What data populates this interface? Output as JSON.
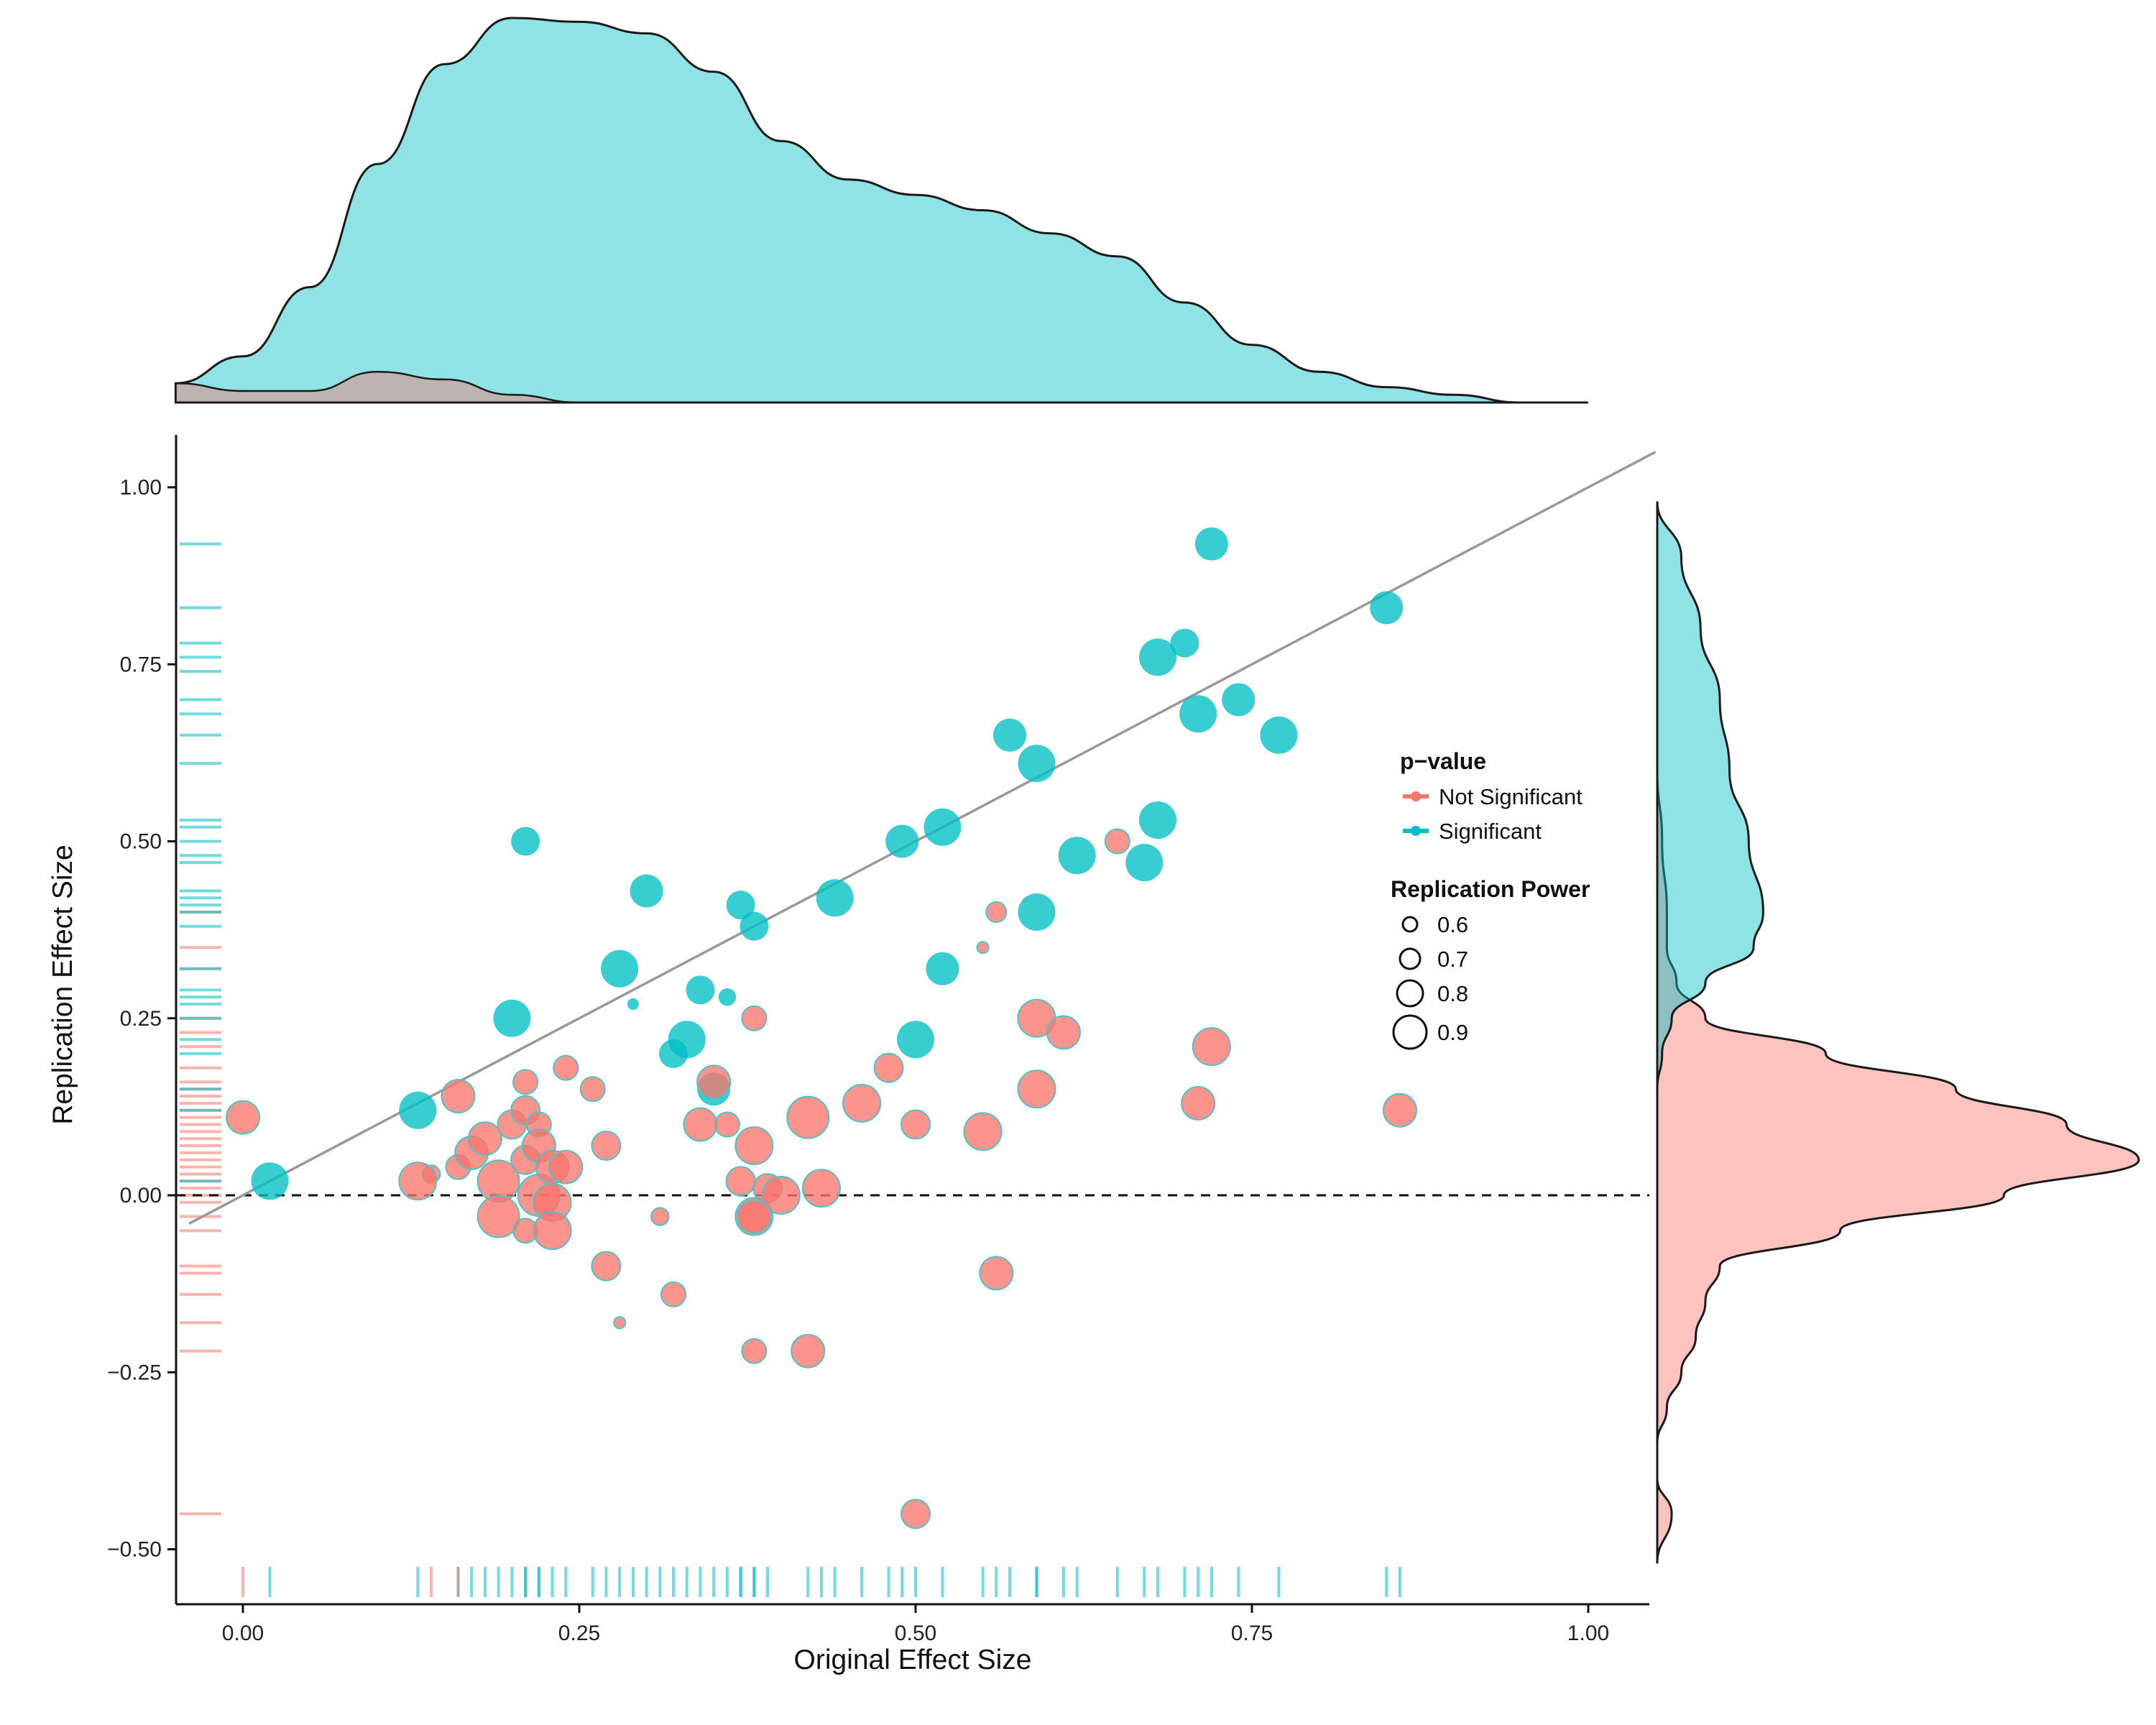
{
  "chart_data": {
    "type": "scatter",
    "title": "",
    "xlabel": "Original Effect Size",
    "ylabel": "Replication Effect Size",
    "xlim": [
      -0.05,
      1.05
    ],
    "ylim": [
      -0.57,
      1.07
    ],
    "xticks": [
      0.0,
      0.25,
      0.5,
      0.75,
      1.0
    ],
    "xtick_labels": [
      "0.00",
      "0.25",
      "0.50",
      "0.75",
      "1.00"
    ],
    "yticks": [
      -0.5,
      -0.25,
      0.0,
      0.25,
      0.5,
      0.75,
      1.0
    ],
    "ytick_labels": [
      "−0.50",
      "−0.25",
      "0.00",
      "0.25",
      "0.50",
      "0.75",
      "1.00"
    ],
    "reference_line": {
      "type": "diagonal",
      "slope": 1,
      "intercept": 0,
      "color": "#999999"
    },
    "zero_line": {
      "y": 0,
      "style": "dashed",
      "color": "#111111"
    },
    "colors": {
      "not_significant": "#F8766D",
      "significant": "#00BFC4"
    },
    "legend": {
      "color_title": "p−value",
      "color_entries": [
        "Not Significant",
        "Significant"
      ],
      "size_title": "Replication Power",
      "size_entries": [
        "0.6",
        "0.7",
        "0.8",
        "0.9"
      ],
      "size_values": [
        0.6,
        0.7,
        0.8,
        0.9
      ],
      "position": "right"
    },
    "series": [
      {
        "name": "Significant",
        "points": [
          [
            0.72,
            0.92,
            0.8
          ],
          [
            0.85,
            0.83,
            0.8
          ],
          [
            0.7,
            0.78,
            0.75
          ],
          [
            0.68,
            0.76,
            0.85
          ],
          [
            0.74,
            0.7,
            0.8
          ],
          [
            0.71,
            0.68,
            0.85
          ],
          [
            0.77,
            0.65,
            0.85
          ],
          [
            0.57,
            0.65,
            0.8
          ],
          [
            0.59,
            0.61,
            0.85
          ],
          [
            0.52,
            0.52,
            0.85
          ],
          [
            0.49,
            0.5,
            0.8
          ],
          [
            0.68,
            0.53,
            0.85
          ],
          [
            0.62,
            0.48,
            0.85
          ],
          [
            0.67,
            0.47,
            0.85
          ],
          [
            0.44,
            0.42,
            0.85
          ],
          [
            0.21,
            0.5,
            0.75
          ],
          [
            0.3,
            0.43,
            0.8
          ],
          [
            0.37,
            0.41,
            0.75
          ],
          [
            0.38,
            0.38,
            0.75
          ],
          [
            0.59,
            0.4,
            0.85
          ],
          [
            0.28,
            0.32,
            0.85
          ],
          [
            0.52,
            0.32,
            0.8
          ],
          [
            0.34,
            0.29,
            0.75
          ],
          [
            0.36,
            0.28,
            0.62
          ],
          [
            0.29,
            0.27,
            0.55
          ],
          [
            0.2,
            0.25,
            0.85
          ],
          [
            0.33,
            0.22,
            0.85
          ],
          [
            0.32,
            0.2,
            0.75
          ],
          [
            0.5,
            0.22,
            0.85
          ],
          [
            0.35,
            0.15,
            0.8
          ],
          [
            0.13,
            0.12,
            0.85
          ],
          [
            0.02,
            0.02,
            0.85
          ]
        ]
      },
      {
        "name": "Not Significant",
        "points": [
          [
            0.0,
            0.11,
            0.8
          ],
          [
            0.16,
            0.14,
            0.8
          ],
          [
            0.14,
            0.03,
            0.62
          ],
          [
            0.13,
            0.02,
            0.85
          ],
          [
            0.16,
            0.04,
            0.7
          ],
          [
            0.17,
            0.06,
            0.8
          ],
          [
            0.18,
            0.08,
            0.8
          ],
          [
            0.19,
            0.02,
            0.9
          ],
          [
            0.19,
            -0.03,
            0.9
          ],
          [
            0.2,
            0.1,
            0.75
          ],
          [
            0.21,
            0.16,
            0.7
          ],
          [
            0.21,
            0.12,
            0.75
          ],
          [
            0.21,
            0.05,
            0.75
          ],
          [
            0.21,
            -0.05,
            0.7
          ],
          [
            0.22,
            0.1,
            0.7
          ],
          [
            0.22,
            0.07,
            0.8
          ],
          [
            0.22,
            0.0,
            0.9
          ],
          [
            0.23,
            -0.01,
            0.85
          ],
          [
            0.23,
            -0.05,
            0.85
          ],
          [
            0.23,
            0.04,
            0.8
          ],
          [
            0.24,
            0.04,
            0.8
          ],
          [
            0.24,
            0.18,
            0.7
          ],
          [
            0.26,
            0.15,
            0.7
          ],
          [
            0.27,
            0.07,
            0.75
          ],
          [
            0.27,
            -0.1,
            0.75
          ],
          [
            0.28,
            -0.18,
            0.55
          ],
          [
            0.31,
            -0.03,
            0.62
          ],
          [
            0.32,
            -0.14,
            0.7
          ],
          [
            0.34,
            0.1,
            0.8
          ],
          [
            0.35,
            0.16,
            0.8
          ],
          [
            0.36,
            0.1,
            0.7
          ],
          [
            0.37,
            0.02,
            0.75
          ],
          [
            0.38,
            -0.03,
            0.85
          ],
          [
            0.38,
            -0.03,
            0.8
          ],
          [
            0.38,
            0.07,
            0.85
          ],
          [
            0.38,
            0.25,
            0.7
          ],
          [
            0.38,
            -0.22,
            0.7
          ],
          [
            0.39,
            0.01,
            0.75
          ],
          [
            0.4,
            0.0,
            0.85
          ],
          [
            0.42,
            0.11,
            0.9
          ],
          [
            0.42,
            -0.22,
            0.8
          ],
          [
            0.43,
            0.01,
            0.85
          ],
          [
            0.46,
            0.13,
            0.85
          ],
          [
            0.48,
            0.18,
            0.75
          ],
          [
            0.5,
            0.1,
            0.75
          ],
          [
            0.5,
            -0.45,
            0.75
          ],
          [
            0.55,
            0.09,
            0.85
          ],
          [
            0.55,
            0.35,
            0.55
          ],
          [
            0.56,
            0.4,
            0.65
          ],
          [
            0.56,
            -0.11,
            0.8
          ],
          [
            0.59,
            0.25,
            0.85
          ],
          [
            0.59,
            0.15,
            0.85
          ],
          [
            0.61,
            0.23,
            0.8
          ],
          [
            0.65,
            0.5,
            0.7
          ],
          [
            0.71,
            0.13,
            0.8
          ],
          [
            0.72,
            0.21,
            0.85
          ],
          [
            0.86,
            0.12,
            0.8
          ]
        ]
      }
    ],
    "rug_x": {
      "significant": [
        0.02,
        0.13,
        0.16,
        0.17,
        0.18,
        0.19,
        0.2,
        0.21,
        0.21,
        0.22,
        0.22,
        0.23,
        0.24,
        0.26,
        0.27,
        0.28,
        0.29,
        0.3,
        0.31,
        0.32,
        0.33,
        0.34,
        0.35,
        0.36,
        0.37,
        0.37,
        0.38,
        0.38,
        0.39,
        0.42,
        0.43,
        0.44,
        0.46,
        0.48,
        0.49,
        0.5,
        0.52,
        0.55,
        0.56,
        0.57,
        0.59,
        0.59,
        0.61,
        0.62,
        0.65,
        0.67,
        0.68,
        0.7,
        0.71,
        0.72,
        0.74,
        0.77,
        0.85,
        0.86
      ],
      "not_significant": [
        0.0,
        0.14,
        0.16
      ]
    },
    "rug_y": {
      "significant": [
        0.92,
        0.83,
        0.78,
        0.76,
        0.74,
        0.7,
        0.68,
        0.65,
        0.61,
        0.53,
        0.52,
        0.5,
        0.48,
        0.47,
        0.43,
        0.42,
        0.41,
        0.4,
        0.38,
        0.32,
        0.29,
        0.28,
        0.27,
        0.25,
        0.22,
        0.2,
        0.15,
        0.12,
        0.02
      ],
      "not_significant": [
        0.4,
        0.35,
        0.32,
        0.25,
        0.23,
        0.21,
        0.18,
        0.16,
        0.15,
        0.14,
        0.13,
        0.12,
        0.11,
        0.1,
        0.09,
        0.08,
        0.07,
        0.06,
        0.05,
        0.04,
        0.03,
        0.02,
        0.01,
        0.0,
        -0.01,
        -0.03,
        -0.05,
        -0.1,
        -0.11,
        -0.14,
        -0.18,
        -0.22,
        -0.45
      ]
    },
    "top_density": {
      "x": [
        -0.05,
        0.0,
        0.05,
        0.1,
        0.15,
        0.2,
        0.25,
        0.3,
        0.35,
        0.4,
        0.45,
        0.5,
        0.55,
        0.6,
        0.65,
        0.7,
        0.75,
        0.8,
        0.85,
        0.9,
        0.95,
        1.0
      ],
      "significant": [
        0.05,
        0.12,
        0.3,
        0.62,
        0.88,
        1.0,
        0.99,
        0.96,
        0.86,
        0.68,
        0.58,
        0.54,
        0.5,
        0.44,
        0.38,
        0.26,
        0.15,
        0.08,
        0.04,
        0.02,
        0.0,
        0.0
      ],
      "not_significant": [
        0.05,
        0.03,
        0.03,
        0.08,
        0.06,
        0.02,
        0.0,
        0.0,
        0.0,
        0.0,
        0.0,
        0.0,
        0.0,
        0.0,
        0.0,
        0.0,
        0.0,
        0.0,
        0.0,
        0.0,
        0.0,
        0.0
      ]
    },
    "right_density": {
      "y": [
        0.98,
        0.9,
        0.8,
        0.7,
        0.6,
        0.5,
        0.4,
        0.35,
        0.3,
        0.25,
        0.2,
        0.15,
        0.1,
        0.05,
        0.0,
        -0.05,
        -0.1,
        -0.15,
        -0.2,
        -0.25,
        -0.3,
        -0.35,
        -0.4,
        -0.45,
        -0.52
      ],
      "significant": [
        0.0,
        0.05,
        0.09,
        0.13,
        0.15,
        0.19,
        0.22,
        0.2,
        0.1,
        0.03,
        0.01,
        0.0,
        0.0,
        0.0,
        0.0,
        0.0,
        0.0,
        0.0,
        0.0,
        0.0,
        0.0,
        0.0,
        0.0,
        0.0,
        0.0
      ],
      "not_significant": [
        0.0,
        0.0,
        0.0,
        0.0,
        0.0,
        0.01,
        0.02,
        0.02,
        0.04,
        0.1,
        0.35,
        0.62,
        0.85,
        1.0,
        0.72,
        0.38,
        0.13,
        0.1,
        0.08,
        0.05,
        0.02,
        0.0,
        0.0,
        0.03,
        0.0
      ]
    }
  }
}
